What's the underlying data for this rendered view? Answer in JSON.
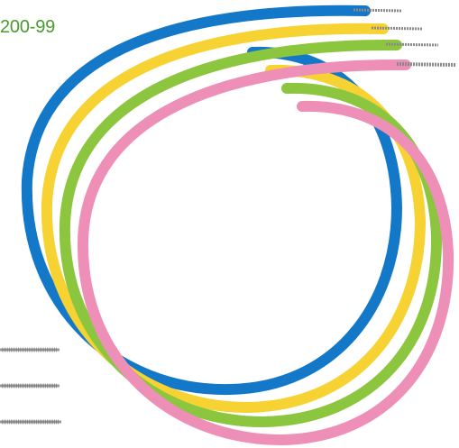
{
  "product_code": "200-99",
  "colors": {
    "label": "#4a9a2e",
    "ring_blue": "#1478c8",
    "ring_yellow": "#f7d233",
    "ring_green": "#8cc63f",
    "ring_pink": "#ee8fb7",
    "brush_shaft": "#9a9a9a",
    "brush_bristle": "#6e6e6e"
  },
  "rings": [
    {
      "name": "blue",
      "color_key": "ring_blue"
    },
    {
      "name": "yellow",
      "color_key": "ring_yellow"
    },
    {
      "name": "green",
      "color_key": "ring_green"
    },
    {
      "name": "pink",
      "color_key": "ring_pink"
    }
  ],
  "brush_tips": [
    "blue",
    "yellow",
    "green",
    "pink",
    "end-1",
    "end-2",
    "end-3"
  ]
}
